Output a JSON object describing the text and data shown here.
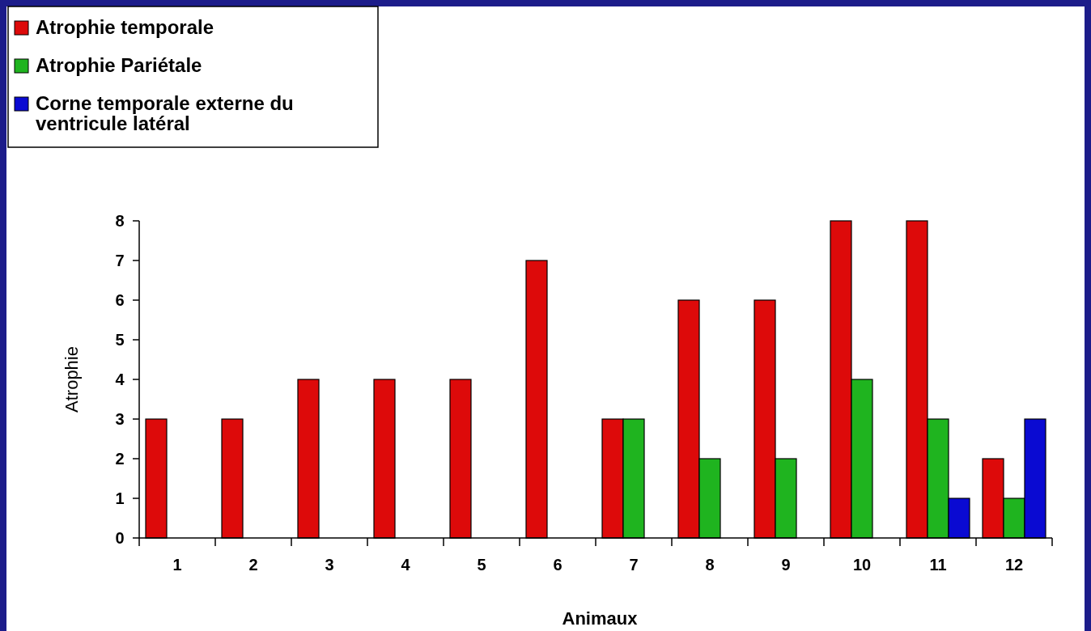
{
  "chart_data": {
    "type": "bar",
    "xlabel": "Animaux",
    "ylabel": "Atrophie",
    "categories": [
      "1",
      "2",
      "3",
      "4",
      "5",
      "6",
      "7",
      "8",
      "9",
      "10",
      "11",
      "12"
    ],
    "series": [
      {
        "name": "Atrophie temporale",
        "color": "#dd0a0a",
        "values": [
          3,
          3,
          4,
          4,
          4,
          7,
          3,
          6,
          6,
          8,
          8,
          2
        ]
      },
      {
        "name": "Atrophie Pariétale",
        "color": "#1fb41f",
        "values": [
          null,
          null,
          null,
          null,
          null,
          null,
          3,
          2,
          2,
          4,
          3,
          1
        ]
      },
      {
        "name": "Corne temporale externe du ventricule latéral",
        "color": "#0a0ad2",
        "values": [
          null,
          null,
          null,
          null,
          null,
          null,
          null,
          null,
          null,
          null,
          1,
          3
        ]
      }
    ],
    "ylim": [
      0,
      8
    ],
    "yticks": [
      0,
      1,
      2,
      3,
      4,
      5,
      6,
      7,
      8
    ],
    "legend": "top left",
    "grid": false
  }
}
